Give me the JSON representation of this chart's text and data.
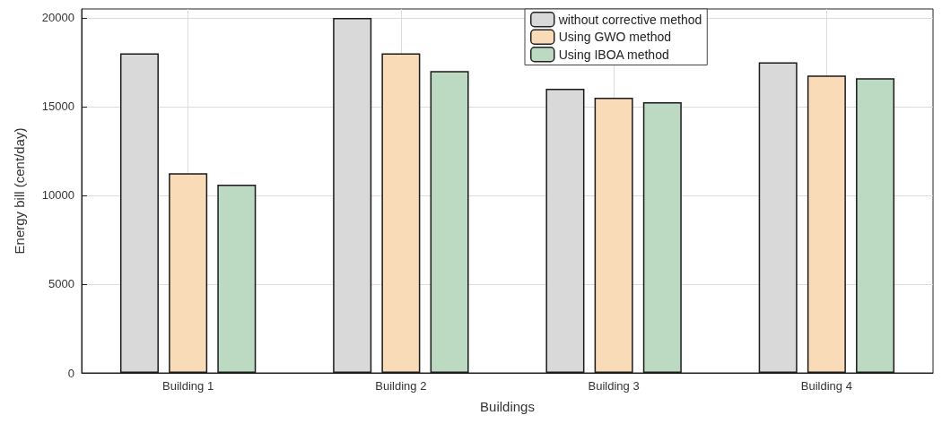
{
  "chart_data": {
    "type": "bar",
    "xlabel": "Buildings",
    "ylabel": "Energy bill (cent/day)",
    "categories": [
      "Building 1",
      "Building 2",
      "Building 3",
      "Building 4"
    ],
    "series": [
      {
        "name": "without corrective method",
        "color": "#d9d9d9",
        "values": [
          18000,
          20000,
          16000,
          17500
        ]
      },
      {
        "name": "Using GWO method",
        "color": "#f9dbb7",
        "values": [
          11250,
          18000,
          15500,
          16750
        ]
      },
      {
        "name": "Using IBOA method",
        "color": "#bcd9c2",
        "values": [
          10600,
          17000,
          15250,
          16600
        ]
      }
    ],
    "ylim": [
      0,
      20500
    ],
    "yticks": [
      0,
      5000,
      10000,
      15000,
      20000
    ],
    "grid": true,
    "legend": "top"
  }
}
